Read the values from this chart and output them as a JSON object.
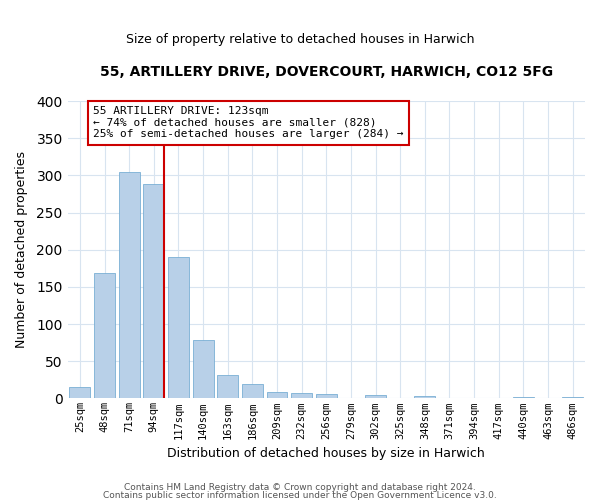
{
  "title": "55, ARTILLERY DRIVE, DOVERCOURT, HARWICH, CO12 5FG",
  "subtitle": "Size of property relative to detached houses in Harwich",
  "xlabel": "Distribution of detached houses by size in Harwich",
  "ylabel": "Number of detached properties",
  "bin_labels": [
    "25sqm",
    "48sqm",
    "71sqm",
    "94sqm",
    "117sqm",
    "140sqm",
    "163sqm",
    "186sqm",
    "209sqm",
    "232sqm",
    "256sqm",
    "279sqm",
    "302sqm",
    "325sqm",
    "348sqm",
    "371sqm",
    "394sqm",
    "417sqm",
    "440sqm",
    "463sqm",
    "486sqm"
  ],
  "bar_values": [
    15,
    168,
    305,
    288,
    190,
    78,
    32,
    20,
    8,
    7,
    6,
    0,
    4,
    0,
    3,
    0,
    0,
    0,
    2,
    0,
    2
  ],
  "bar_color": "#b8d0e8",
  "bar_edge_color": "#7aafd4",
  "marker_label": "55 ARTILLERY DRIVE: 123sqm",
  "annotation_line1": "← 74% of detached houses are smaller (828)",
  "annotation_line2": "25% of semi-detached houses are larger (284) →",
  "annotation_box_color": "#ffffff",
  "annotation_box_edge_color": "#cc0000",
  "vline_color": "#cc0000",
  "ylim": [
    0,
    400
  ],
  "yticks": [
    0,
    50,
    100,
    150,
    200,
    250,
    300,
    350,
    400
  ],
  "footer_line1": "Contains HM Land Registry data © Crown copyright and database right 2024.",
  "footer_line2": "Contains public sector information licensed under the Open Government Licence v3.0.",
  "bg_color": "#ffffff",
  "plot_bg_color": "#ffffff",
  "grid_color": "#d8e4f0"
}
